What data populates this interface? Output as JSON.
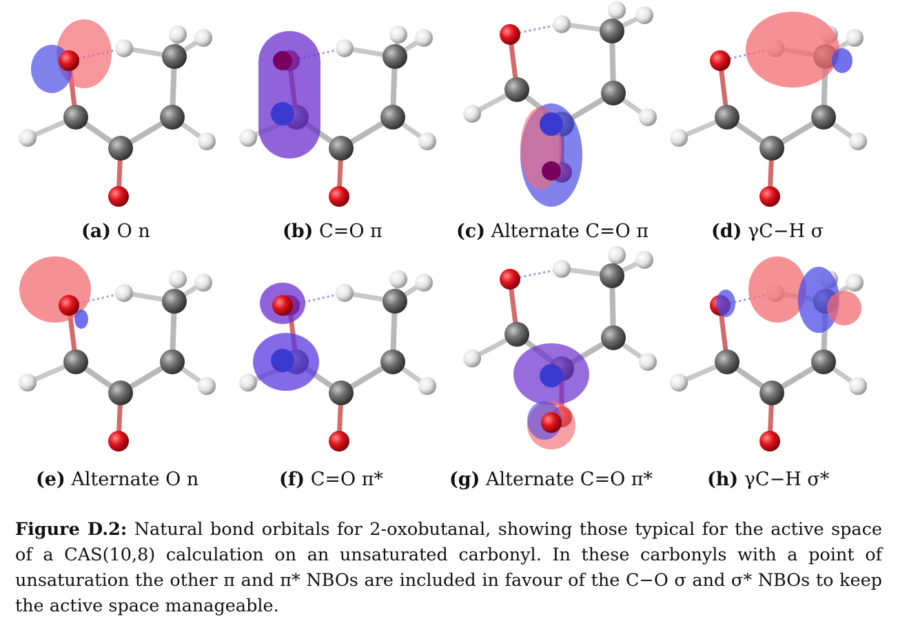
{
  "panels": [
    {
      "tag": "(a)",
      "text": "O n"
    },
    {
      "tag": "(b)",
      "text": "C=O π"
    },
    {
      "tag": "(c)",
      "text": "Alternate C=O π"
    },
    {
      "tag": "(d)",
      "text": "γC−H σ"
    },
    {
      "tag": "(e)",
      "text": "Alternate O n"
    },
    {
      "tag": "(f)",
      "text": "C=O π*"
    },
    {
      "tag": "(g)",
      "text": "Alternate C=O π*"
    },
    {
      "tag": "(h)",
      "text": "γC−H σ*"
    }
  ],
  "figure": {
    "label": "Figure D.2:",
    "text": "Natural bond orbitals for 2-oxobutanal, showing those typical for the active space of a CAS(10,8) calculation on an unsaturated carbonyl. In these carbonyls with a point of unsaturation the other π and π* NBOs are included in favour of the C−O σ and σ* NBOs to keep the active space manageable."
  },
  "colors": {
    "oxygen": "#e0141c",
    "carbon": "#6e6e6e",
    "hydrogen": "#e8e8e8",
    "positive_lobe": "#f26b72",
    "negative_lobe": "#4d4de6"
  }
}
